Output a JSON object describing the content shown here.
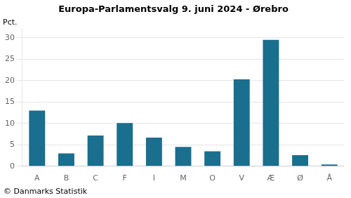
{
  "chart_data": {
    "type": "bar",
    "title": "Europa-Parlamentsvalg 9. juni 2024 - Ørebro",
    "categories": [
      "A",
      "B",
      "C",
      "F",
      "I",
      "M",
      "O",
      "V",
      "Æ",
      "Ø",
      "Å"
    ],
    "values": [
      13.0,
      3.0,
      7.2,
      10.1,
      6.7,
      4.5,
      3.5,
      20.3,
      29.5,
      2.6,
      0.4
    ],
    "color": "#1a6e8e",
    "ylim": [
      0,
      32
    ],
    "yticks": [
      0,
      5,
      10,
      15,
      20,
      25,
      30
    ],
    "grid": true,
    "annotations": [
      "Pct.",
      "© Danmarks Statistik"
    ]
  }
}
